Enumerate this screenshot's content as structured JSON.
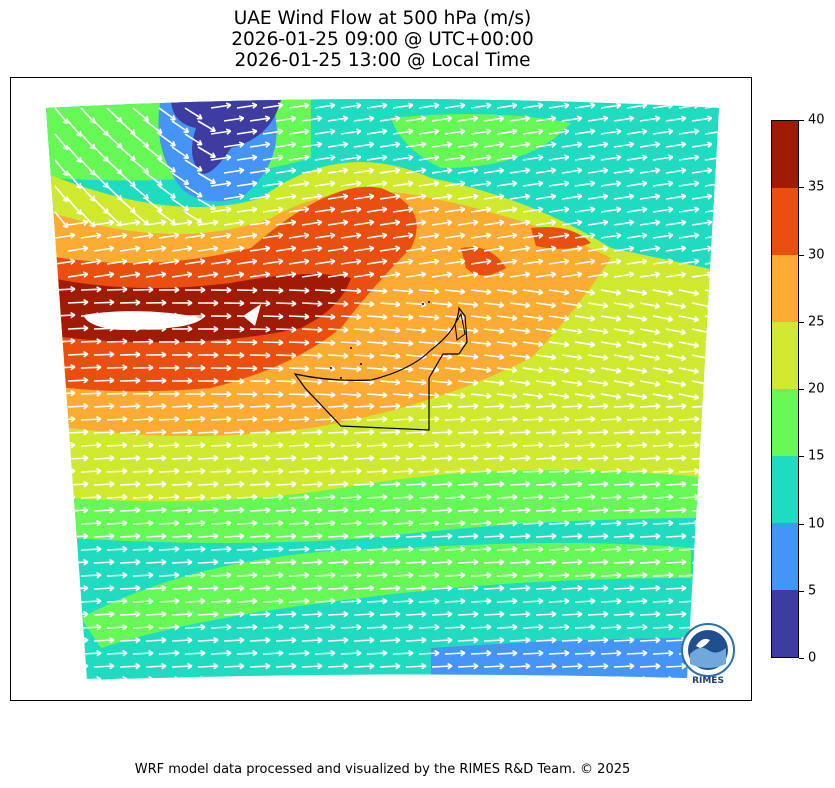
{
  "title": {
    "line1": "UAE Wind Flow at 500 hPa (m/s)",
    "line2": "2026-01-25 09:00 @ UTC+00:00",
    "line3": "2026-01-25 13:00 @ Local Time"
  },
  "colorbar": {
    "ticks": [
      "0",
      "5",
      "10",
      "15",
      "20",
      "25",
      "30",
      "35",
      "40"
    ],
    "colors": [
      "#3e3ca0",
      "#4594f7",
      "#1fdcc1",
      "#66f955",
      "#cfe92e",
      "#fdab32",
      "#eb4f0f",
      "#a11a03"
    ]
  },
  "logo": {
    "text": "RIMES"
  },
  "footer": "WRF model data processed and visualized by the RIMES R&D Team. © 2025"
}
